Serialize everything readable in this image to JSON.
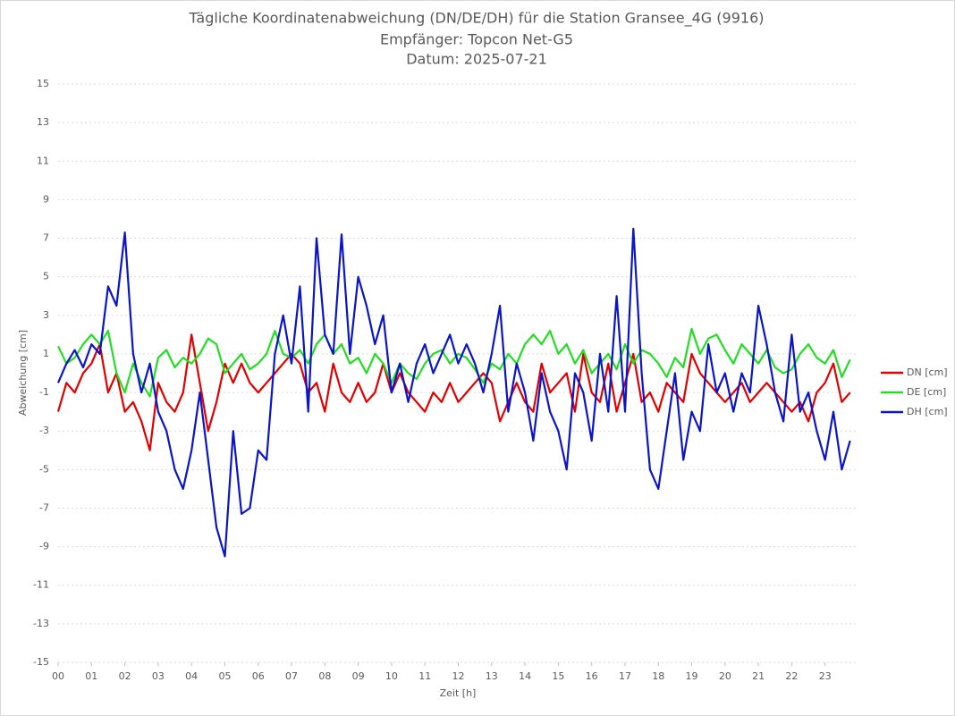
{
  "chart_data": {
    "type": "line",
    "title": "Tägliche Koordinatenabweichung (DN/DE/DH) für die Station Gransee_4G (9916)",
    "subtitle": "Empfänger: Topcon Net-G5",
    "date_label": "Datum: 2025-07-21",
    "x_label": "Zeit [h]",
    "y_label": "Abweichung [cm]",
    "xlim": [
      0,
      24
    ],
    "xticks": [
      {
        "value": 0,
        "label": "00"
      },
      {
        "value": 1,
        "label": "01"
      },
      {
        "value": 2,
        "label": "02"
      },
      {
        "value": 3,
        "label": "03"
      },
      {
        "value": 4,
        "label": "04"
      },
      {
        "value": 5,
        "label": "05"
      },
      {
        "value": 6,
        "label": "06"
      },
      {
        "value": 7,
        "label": "07"
      },
      {
        "value": 8,
        "label": "08"
      },
      {
        "value": 9,
        "label": "09"
      },
      10,
      11,
      12,
      13,
      14,
      15,
      16,
      17,
      18,
      19,
      20,
      21,
      22,
      23
    ],
    "ylim": [
      -15,
      15
    ],
    "yticks": [
      -15,
      -13,
      -11,
      -9,
      -7,
      -5,
      -3,
      -1,
      1,
      3,
      5,
      7,
      9,
      11,
      13,
      15
    ],
    "grid": true,
    "x": [
      0,
      0.25,
      0.5,
      0.75,
      1,
      1.25,
      1.5,
      1.75,
      2,
      2.25,
      2.5,
      2.75,
      3,
      3.25,
      3.5,
      3.75,
      4,
      4.25,
      4.5,
      4.75,
      5,
      5.25,
      5.5,
      5.75,
      6,
      6.25,
      6.5,
      6.75,
      7,
      7.25,
      7.5,
      7.75,
      8,
      8.25,
      8.5,
      8.75,
      9,
      9.25,
      9.5,
      9.75,
      10,
      10.25,
      10.5,
      10.75,
      11,
      11.25,
      11.5,
      11.75,
      12,
      12.25,
      12.5,
      12.75,
      13,
      13.25,
      13.5,
      13.75,
      14,
      14.25,
      14.5,
      14.75,
      15,
      15.25,
      15.5,
      15.75,
      16,
      16.25,
      16.5,
      16.75,
      17,
      17.25,
      17.5,
      17.75,
      18,
      18.25,
      18.5,
      18.75,
      19,
      19.25,
      19.5,
      19.75,
      20,
      20.25,
      20.5,
      20.75,
      21,
      21.25,
      21.5,
      21.75,
      22,
      22.25,
      22.5,
      22.75,
      23,
      23.25,
      23.5,
      23.75
    ],
    "series": [
      {
        "name": "DN [cm]",
        "color": "#e00000",
        "values": [
          -2.0,
          -0.5,
          -1.0,
          0.0,
          0.5,
          1.5,
          -1.0,
          0.0,
          -2.0,
          -1.5,
          -2.5,
          -4.0,
          -0.5,
          -1.5,
          -2.0,
          -1.0,
          2.0,
          -0.5,
          -3.0,
          -1.5,
          0.5,
          -0.5,
          0.5,
          -0.5,
          -1.0,
          -0.5,
          0.0,
          0.5,
          1.0,
          0.5,
          -1.0,
          -0.5,
          -2.0,
          0.5,
          -1.0,
          -1.5,
          -0.5,
          -1.5,
          -1.0,
          0.5,
          -1.0,
          0.0,
          -1.0,
          -1.5,
          -2.0,
          -1.0,
          -1.5,
          -0.5,
          -1.5,
          -1.0,
          -0.5,
          0.0,
          -0.5,
          -2.5,
          -1.5,
          -0.5,
          -1.5,
          -2.0,
          0.5,
          -1.0,
          -0.5,
          0.0,
          -2.0,
          1.0,
          -1.0,
          -1.5,
          0.5,
          -2.0,
          -0.5,
          1.0,
          -1.5,
          -1.0,
          -2.0,
          -0.5,
          -1.0,
          -1.5,
          1.0,
          0.0,
          -0.5,
          -1.0,
          -1.5,
          -1.0,
          -0.5,
          -1.5,
          -1.0,
          -0.5,
          -1.0,
          -1.5,
          -2.0,
          -1.5,
          -2.5,
          -1.0,
          -0.5,
          0.5,
          -1.5,
          -1.0
        ]
      },
      {
        "name": "DE [cm]",
        "color": "#22dd22",
        "values": [
          1.4,
          0.5,
          0.8,
          1.5,
          2.0,
          1.5,
          2.2,
          0.0,
          -1.0,
          0.5,
          -0.5,
          -1.2,
          0.8,
          1.2,
          0.3,
          0.8,
          0.5,
          1.0,
          1.8,
          1.5,
          0.0,
          0.5,
          1.0,
          0.2,
          0.5,
          1.0,
          2.2,
          1.0,
          0.8,
          1.2,
          0.5,
          1.5,
          2.0,
          1.0,
          1.5,
          0.5,
          0.8,
          0.0,
          1.0,
          0.5,
          -0.5,
          0.5,
          0.0,
          -0.3,
          0.5,
          1.0,
          1.2,
          0.5,
          1.0,
          0.8,
          0.2,
          -0.5,
          0.5,
          0.2,
          1.0,
          0.5,
          1.5,
          2.0,
          1.5,
          2.2,
          1.0,
          1.5,
          0.5,
          1.2,
          0.0,
          0.5,
          1.0,
          0.2,
          1.5,
          0.5,
          1.2,
          1.0,
          0.5,
          -0.2,
          0.8,
          0.3,
          2.3,
          1.0,
          1.8,
          2.0,
          1.2,
          0.5,
          1.5,
          1.0,
          0.5,
          1.2,
          0.3,
          0.0,
          0.2,
          1.0,
          1.5,
          0.8,
          0.5,
          1.2,
          -0.2,
          0.7
        ]
      },
      {
        "name": "DH [cm]",
        "color": "#0a14c8",
        "values": [
          -0.5,
          0.5,
          1.2,
          0.3,
          1.5,
          1.0,
          4.5,
          3.5,
          7.3,
          1.0,
          -1.0,
          0.5,
          -2.0,
          -3.0,
          -5.0,
          -6.0,
          -4.0,
          -1.0,
          -4.5,
          -8.0,
          -9.5,
          -3.0,
          -7.3,
          -7.0,
          -4.0,
          -4.5,
          1.0,
          3.0,
          0.5,
          4.5,
          -2.0,
          7.0,
          2.0,
          1.0,
          7.2,
          1.0,
          5.0,
          3.5,
          1.5,
          3.0,
          -1.0,
          0.5,
          -1.5,
          0.5,
          1.5,
          0.0,
          1.0,
          2.0,
          0.5,
          1.5,
          0.5,
          -1.0,
          1.0,
          3.5,
          -2.0,
          0.5,
          -1.0,
          -3.5,
          0.0,
          -2.0,
          -3.0,
          -5.0,
          0.0,
          -1.0,
          -3.5,
          1.0,
          -2.0,
          4.0,
          -2.0,
          7.5,
          0.0,
          -5.0,
          -6.0,
          -3.0,
          0.0,
          -4.5,
          -2.0,
          -3.0,
          1.5,
          -1.0,
          0.0,
          -2.0,
          0.0,
          -1.0,
          3.5,
          1.5,
          -1.0,
          -2.5,
          2.0,
          -2.0,
          -1.0,
          -3.0,
          -4.5,
          -2.0,
          -5.0,
          -3.5
        ]
      }
    ],
    "legend": "right"
  }
}
